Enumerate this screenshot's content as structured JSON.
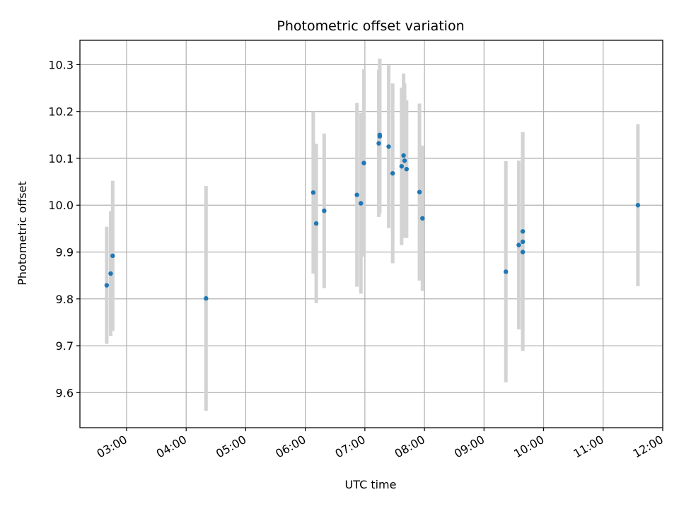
{
  "chart_data": {
    "type": "scatter",
    "title": "Photometric offset variation",
    "xlabel": "UTC time",
    "ylabel": "Photometric offset",
    "xlim": [
      "02:13",
      "12:00"
    ],
    "ylim": [
      9.525,
      10.352
    ],
    "grid": true,
    "legend": "none",
    "x_ticks": [
      "03:00",
      "04:00",
      "05:00",
      "06:00",
      "07:00",
      "08:00",
      "09:00",
      "10:00",
      "11:00",
      "12:00"
    ],
    "y_ticks": [
      "9.6",
      "9.7",
      "9.8",
      "9.9",
      "10.0",
      "10.1",
      "10.2",
      "10.3"
    ],
    "colors": {
      "point": "#1f77b4",
      "errorbar": "#d3d3d3",
      "grid": "#b0b0b0"
    },
    "series": [
      {
        "points": [
          {
            "x": "02:40",
            "y": 9.829,
            "err": 0.125
          },
          {
            "x": "02:44",
            "y": 9.854,
            "err": 0.133
          },
          {
            "x": "02:46",
            "y": 9.892,
            "err": 0.16
          },
          {
            "x": "04:20",
            "y": 9.801,
            "err": 0.24
          },
          {
            "x": "06:08",
            "y": 10.027,
            "err": 0.173
          },
          {
            "x": "06:11",
            "y": 9.961,
            "err": 0.17
          },
          {
            "x": "06:19",
            "y": 9.988,
            "err": 0.165
          },
          {
            "x": "06:52",
            "y": 10.022,
            "err": 0.196
          },
          {
            "x": "06:56",
            "y": 10.004,
            "err": 0.193
          },
          {
            "x": "06:59",
            "y": 10.09,
            "err": 0.2
          },
          {
            "x": "07:14",
            "y": 10.132,
            "err": 0.157
          },
          {
            "x": "07:15",
            "y": 10.15,
            "err": 0.163
          },
          {
            "x": "07:15",
            "y": 10.147,
            "err": 0.165
          },
          {
            "x": "07:24",
            "y": 10.125,
            "err": 0.174
          },
          {
            "x": "07:28",
            "y": 10.068,
            "err": 0.192
          },
          {
            "x": "07:37",
            "y": 10.083,
            "err": 0.168
          },
          {
            "x": "07:39",
            "y": 10.106,
            "err": 0.175
          },
          {
            "x": "07:40",
            "y": 10.095,
            "err": 0.165
          },
          {
            "x": "07:42",
            "y": 10.077,
            "err": 0.147
          },
          {
            "x": "07:55",
            "y": 10.028,
            "err": 0.189
          },
          {
            "x": "07:58",
            "y": 9.972,
            "err": 0.155
          },
          {
            "x": "09:22",
            "y": 9.858,
            "err": 0.236
          },
          {
            "x": "09:35",
            "y": 9.915,
            "err": 0.18
          },
          {
            "x": "09:39",
            "y": 9.944,
            "err": 0.212
          },
          {
            "x": "09:39",
            "y": 9.922,
            "err": 0.233
          },
          {
            "x": "09:39",
            "y": 9.9,
            "err": 0.21
          },
          {
            "x": "11:35",
            "y": 10.0,
            "err": 0.173
          }
        ]
      }
    ]
  }
}
